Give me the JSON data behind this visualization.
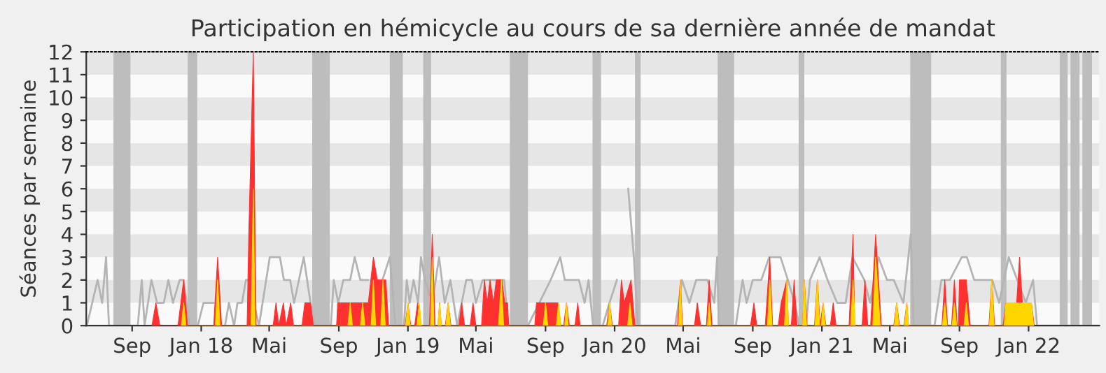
{
  "chart_data": {
    "type": "area",
    "title": "Participation en hémicycle au cours de sa dernière année de mandat",
    "ylabel": "Séances par semaine",
    "xlim": [
      "2017-06-12",
      "2022-05-06"
    ],
    "ylim": [
      0,
      12
    ],
    "yticks": [
      0,
      1,
      2,
      3,
      4,
      5,
      6,
      7,
      8,
      9,
      10,
      11,
      12
    ],
    "xticks": [
      {
        "value": "2017-09-01",
        "label": "Sep"
      },
      {
        "value": "2018-01-01",
        "label": "Jan 18"
      },
      {
        "value": "2018-05-01",
        "label": "Mai"
      },
      {
        "value": "2018-09-01",
        "label": "Sep"
      },
      {
        "value": "2019-01-01",
        "label": "Jan 19"
      },
      {
        "value": "2019-05-01",
        "label": "Mai"
      },
      {
        "value": "2019-09-01",
        "label": "Sep"
      },
      {
        "value": "2020-01-01",
        "label": "Jan 20"
      },
      {
        "value": "2020-05-01",
        "label": "Mai"
      },
      {
        "value": "2020-09-01",
        "label": "Sep"
      },
      {
        "value": "2021-01-01",
        "label": "Jan 21"
      },
      {
        "value": "2021-05-01",
        "label": "Mai"
      },
      {
        "value": "2021-09-01",
        "label": "Sep"
      },
      {
        "value": "2022-01-01",
        "label": "Jan 22"
      }
    ],
    "legend": false,
    "marker": "none",
    "line_style": "solid",
    "bands": [
      {
        "axis": "y",
        "from": 1,
        "to": 2,
        "color": "#e6e6e6"
      },
      {
        "axis": "y",
        "from": 3,
        "to": 4,
        "color": "#e6e6e6"
      },
      {
        "axis": "y",
        "from": 5,
        "to": 6,
        "color": "#e6e6e6"
      },
      {
        "axis": "y",
        "from": 7,
        "to": 8,
        "color": "#e6e6e6"
      },
      {
        "axis": "y",
        "from": 9,
        "to": 10,
        "color": "#e6e6e6"
      },
      {
        "axis": "y",
        "from": 11,
        "to": 12,
        "color": "#e6e6e6"
      },
      {
        "axis": "x",
        "from": "2017-07-30",
        "to": "2017-08-29",
        "color": "#bdbdbd"
      },
      {
        "axis": "x",
        "from": "2017-12-08",
        "to": "2017-12-25",
        "color": "#bdbdbd"
      },
      {
        "axis": "x",
        "from": "2018-07-16",
        "to": "2018-08-16",
        "color": "#bdbdbd"
      },
      {
        "axis": "x",
        "from": "2018-11-30",
        "to": "2018-12-23",
        "color": "#bdbdbd"
      },
      {
        "axis": "x",
        "from": "2019-01-28",
        "to": "2019-02-11",
        "color": "#bdbdbd"
      },
      {
        "axis": "x",
        "from": "2019-06-30",
        "to": "2019-08-01",
        "color": "#bdbdbd"
      },
      {
        "axis": "x",
        "from": "2019-11-23",
        "to": "2019-12-08",
        "color": "#bdbdbd"
      },
      {
        "axis": "x",
        "from": "2020-02-06",
        "to": "2020-02-16",
        "color": "#bdbdbd"
      },
      {
        "axis": "x",
        "from": "2020-07-01",
        "to": "2020-07-30",
        "color": "#bdbdbd"
      },
      {
        "axis": "x",
        "from": "2020-11-21",
        "to": "2020-12-01",
        "color": "#bdbdbd"
      },
      {
        "axis": "x",
        "from": "2021-06-06",
        "to": "2021-07-13",
        "color": "#bdbdbd"
      },
      {
        "axis": "x",
        "from": "2021-11-13",
        "to": "2021-11-23",
        "color": "#bdbdbd"
      },
      {
        "axis": "x",
        "from": "2022-02-25",
        "to": "2022-03-11",
        "color": "#bdbdbd"
      },
      {
        "axis": "x",
        "from": "2022-03-16",
        "to": "2022-04-01",
        "color": "#bdbdbd"
      },
      {
        "axis": "x",
        "from": "2022-04-06",
        "to": "2022-04-23",
        "color": "#bdbdbd"
      }
    ],
    "series": [
      {
        "type": "line",
        "color": "#b4b4b4",
        "x": [
          "2017-06-13",
          "2017-07-02",
          "2017-07-10",
          "2017-07-17",
          "2017-07-22",
          "2017-09-11",
          "2017-09-18",
          "2017-09-23",
          "2017-10-05",
          "2017-10-15",
          "2017-10-27",
          "2017-11-04",
          "2017-11-12",
          "2017-11-24",
          "2017-12-01",
          "2017-12-11",
          "2017-12-26",
          "2018-01-05",
          "2018-01-23",
          "2018-01-30",
          "2018-02-12",
          "2018-02-19",
          "2018-02-28",
          "2018-03-06",
          "2018-03-14",
          "2018-03-21",
          "2018-03-26",
          "2018-04-13",
          "2018-05-02",
          "2018-05-20",
          "2018-05-27",
          "2018-06-07",
          "2018-06-14",
          "2018-07-01",
          "2018-07-13",
          "2018-07-20",
          "2018-08-18",
          "2018-08-23",
          "2018-08-31",
          "2018-09-09",
          "2018-09-21",
          "2018-09-29",
          "2018-10-09",
          "2018-10-23",
          "2018-11-05",
          "2018-11-17",
          "2018-11-30",
          "2018-12-10",
          "2018-12-25",
          "2018-12-30",
          "2019-01-04",
          "2019-01-11",
          "2019-01-19",
          "2019-01-24",
          "2019-01-31",
          "2019-02-13",
          "2019-02-25",
          "2019-03-07",
          "2019-03-17",
          "2019-03-29",
          "2019-04-14",
          "2019-04-24",
          "2019-05-01",
          "2019-05-13",
          "2019-06-03",
          "2019-06-20",
          "2019-06-27",
          "2019-08-01",
          "2019-08-21",
          "2019-09-10",
          "2019-09-27",
          "2019-10-05",
          "2019-10-30",
          "2019-11-09",
          "2019-11-16",
          "2019-11-24",
          "2019-12-11",
          "2019-12-23",
          "2020-01-05",
          "2020-01-15",
          "2020-01-25",
          "2020-02-04",
          "2020-02-11",
          "2020-04-17",
          "2020-04-29",
          "2020-05-12",
          "2020-05-24",
          "2020-06-13",
          "2020-06-25",
          "2020-06-30",
          "2020-07-03",
          "2020-08-02",
          "2020-08-14",
          "2020-08-21",
          "2020-09-01",
          "2020-09-16",
          "2020-09-30",
          "2020-10-10",
          "2020-10-20",
          "2020-11-02",
          "2020-11-14",
          "2020-11-22",
          "2020-12-04",
          "2020-12-11",
          "2020-12-28",
          "2021-01-11",
          "2021-01-28",
          "2021-02-12",
          "2021-02-24",
          "2021-03-17",
          "2021-03-27",
          "2021-04-11",
          "2021-04-26",
          "2021-05-08",
          "2021-05-25",
          "2021-06-07",
          "2021-06-12",
          "2021-07-19",
          "2021-07-31",
          "2021-08-15",
          "2021-09-05",
          "2021-09-14",
          "2021-09-27",
          "2021-10-14",
          "2021-10-29",
          "2021-11-10",
          "2021-11-27",
          "2021-12-12",
          "2021-12-27",
          "2022-01-09",
          "2022-01-16",
          "2022-05-06"
        ],
        "values": [
          0,
          2,
          1,
          3,
          0,
          0,
          2,
          0,
          2,
          1,
          1,
          2,
          1,
          2,
          2,
          0,
          0,
          1,
          1,
          null,
          0,
          1,
          0,
          1,
          1,
          2,
          2,
          0,
          3,
          3,
          2,
          2,
          1,
          3,
          1,
          0,
          0,
          2,
          1,
          2,
          2,
          3,
          2,
          2,
          null,
          2,
          3,
          0,
          0,
          2,
          1,
          2,
          1,
          3,
          2,
          1,
          3,
          1,
          2,
          0,
          2,
          2,
          1,
          2,
          2,
          2,
          0,
          0,
          1,
          2,
          3,
          2,
          2,
          1,
          2,
          0,
          0,
          1,
          2,
          null,
          6,
          3,
          0,
          0,
          2,
          1,
          2,
          2,
          1,
          3,
          0,
          0,
          2,
          1,
          2,
          2,
          3,
          3,
          3,
          2,
          1,
          0,
          0,
          2,
          3,
          2,
          1,
          1,
          3,
          2,
          1,
          3,
          2,
          2,
          1,
          4,
          0,
          0,
          2,
          2,
          3,
          3,
          2,
          2,
          2,
          1,
          3,
          2,
          1,
          2,
          0,
          0
        ]
      },
      {
        "color": "#ff3030",
        "x": [
          "2017-10-06",
          "2017-10-13",
          "2017-10-20",
          "2017-11-21",
          "2017-12-01",
          "2017-12-08",
          "2018-01-23",
          "2018-01-30",
          "2018-02-06",
          "2018-03-23",
          "2018-03-26",
          "2018-04-01",
          "2018-04-03",
          "2018-04-06",
          "2018-04-08",
          "2018-05-08",
          "2018-05-13",
          "2018-05-18",
          "2018-05-26",
          "2018-05-31",
          "2018-06-08",
          "2018-06-13",
          "2018-06-28",
          "2018-07-03",
          "2018-07-13",
          "2018-07-18",
          "2018-08-28",
          "2018-08-30",
          "2018-10-23",
          "2018-11-01",
          "2018-11-08",
          "2018-11-23",
          "2018-11-28",
          "2018-12-27",
          "2019-01-01",
          "2019-01-06",
          "2019-01-13",
          "2019-01-18",
          "2019-01-23",
          "2019-02-08",
          "2019-02-13",
          "2019-02-18",
          "2019-02-23",
          "2019-02-26",
          "2019-03-01",
          "2019-03-08",
          "2019-03-13",
          "2019-03-18",
          "2019-04-01",
          "2019-04-06",
          "2019-04-11",
          "2019-04-21",
          "2019-04-26",
          "2019-05-01",
          "2019-05-11",
          "2019-05-16",
          "2019-05-21",
          "2019-05-26",
          "2019-06-01",
          "2019-06-06",
          "2019-06-16",
          "2019-06-21",
          "2019-06-26",
          "2019-06-28",
          "2019-08-13",
          "2019-08-16",
          "2019-09-23",
          "2019-09-28",
          "2019-10-03",
          "2019-10-08",
          "2019-10-13",
          "2019-10-23",
          "2019-10-28",
          "2019-11-01",
          "2019-12-18",
          "2019-12-23",
          "2019-12-28",
          "2020-01-08",
          "2020-01-13",
          "2020-01-18",
          "2020-01-30",
          "2020-02-06",
          "2020-04-21",
          "2020-04-26",
          "2020-04-30",
          "2020-05-21",
          "2020-05-26",
          "2020-06-01",
          "2020-06-11",
          "2020-06-16",
          "2020-06-21",
          "2020-08-28",
          "2020-09-03",
          "2020-09-08",
          "2020-09-23",
          "2020-10-01",
          "2020-10-06",
          "2020-10-16",
          "2020-10-21",
          "2020-10-31",
          "2020-11-03",
          "2020-11-08",
          "2020-11-13",
          "2020-11-18",
          "2020-11-28",
          "2020-12-01",
          "2020-12-06",
          "2020-12-19",
          "2020-12-24",
          "2020-12-29",
          "2021-01-03",
          "2021-01-08",
          "2021-01-16",
          "2021-01-21",
          "2021-01-26",
          "2021-02-18",
          "2021-02-25",
          "2021-02-28",
          "2021-03-13",
          "2021-03-18",
          "2021-03-23",
          "2021-03-28",
          "2021-04-06",
          "2021-04-16",
          "2021-05-08",
          "2021-05-13",
          "2021-05-18",
          "2021-05-26",
          "2021-05-31",
          "2021-06-03",
          "2021-08-01",
          "2021-08-06",
          "2021-08-11",
          "2021-08-18",
          "2021-08-23",
          "2021-08-28",
          "2021-08-30",
          "2021-09-01",
          "2021-09-13",
          "2021-09-20",
          "2021-10-23",
          "2021-10-28",
          "2021-11-02",
          "2021-11-17",
          "2021-11-22",
          "2021-12-11",
          "2021-12-16",
          "2021-12-21",
          "2022-01-06",
          "2022-01-11"
        ],
        "values": [
          0,
          1,
          0,
          0,
          2,
          0,
          0,
          3,
          0,
          0,
          4,
          10,
          12,
          4,
          0,
          0,
          1,
          0,
          1,
          0,
          1,
          0,
          0,
          1,
          1,
          0,
          0,
          1,
          1,
          3,
          2,
          2,
          0,
          0,
          1,
          0,
          0,
          1,
          0,
          0,
          4,
          0,
          0,
          1,
          0,
          0,
          1,
          0,
          0,
          1,
          0,
          0,
          1,
          0,
          0,
          2,
          1,
          2,
          1,
          2,
          2,
          1,
          1,
          0,
          0,
          1,
          1,
          0,
          0,
          1,
          0,
          0,
          1,
          0,
          0,
          1,
          0,
          0,
          2,
          1,
          2,
          0,
          0,
          2,
          0,
          0,
          1,
          0,
          0,
          2,
          0,
          0,
          1,
          0,
          0,
          3,
          0,
          0,
          1,
          2,
          0,
          0,
          2,
          0,
          0,
          2,
          0,
          0,
          2,
          0,
          1,
          0,
          0,
          1,
          0,
          0,
          4,
          0,
          0,
          2,
          0,
          0,
          4,
          0,
          0,
          1,
          0,
          0,
          1,
          0,
          0,
          2,
          0,
          0,
          2,
          0,
          0,
          2,
          2,
          0,
          0,
          2,
          0,
          0,
          1,
          1,
          3,
          1,
          1,
          0
        ]
      },
      {
        "color": "#ffd700",
        "x": [
          "2017-11-27",
          "2017-12-01",
          "2017-12-05",
          "2018-01-26",
          "2018-01-30",
          "2018-02-03",
          "2018-03-30",
          "2018-04-03",
          "2018-04-06",
          "2018-09-17",
          "2018-09-21",
          "2018-09-25",
          "2018-10-09",
          "2018-10-13",
          "2018-10-17",
          "2018-10-28",
          "2018-11-01",
          "2018-11-05",
          "2018-11-14",
          "2018-11-18",
          "2018-11-22",
          "2018-12-28",
          "2019-01-01",
          "2019-01-05",
          "2019-01-17",
          "2019-01-21",
          "2019-01-25",
          "2019-02-10",
          "2019-02-13",
          "2019-02-16",
          "2019-02-23",
          "2019-02-26",
          "2019-03-01",
          "2019-03-09",
          "2019-03-13",
          "2019-03-17",
          "2019-06-10",
          "2019-06-15",
          "2019-06-19",
          "2019-08-28",
          "2019-09-01",
          "2019-09-05",
          "2019-09-20",
          "2019-09-24",
          "2019-09-28",
          "2019-10-05",
          "2019-10-08",
          "2019-10-11",
          "2019-12-20",
          "2019-12-23",
          "2019-12-27",
          "2020-01-24",
          "2020-01-28",
          "2020-02-01",
          "2020-04-23",
          "2020-04-26",
          "2020-04-29",
          "2020-06-13",
          "2020-06-16",
          "2020-06-19",
          "2020-09-27",
          "2020-10-01",
          "2020-10-05",
          "2020-10-27",
          "2020-10-31",
          "2020-11-03",
          "2020-11-28",
          "2020-12-01",
          "2020-12-05",
          "2020-12-20",
          "2020-12-24",
          "2020-12-28",
          "2020-12-31",
          "2021-01-03",
          "2021-01-07",
          "2021-02-21",
          "2021-02-25",
          "2021-03-01",
          "2021-04-01",
          "2021-04-06",
          "2021-04-14",
          "2021-05-09",
          "2021-05-13",
          "2021-05-17",
          "2021-05-27",
          "2021-05-31",
          "2021-06-03",
          "2021-08-02",
          "2021-08-06",
          "2021-08-10",
          "2021-08-19",
          "2021-08-23",
          "2021-08-27",
          "2021-09-09",
          "2021-09-13",
          "2021-09-17",
          "2021-10-24",
          "2021-10-28",
          "2021-11-01",
          "2021-11-19",
          "2021-11-22",
          "2022-01-06",
          "2022-01-10"
        ],
        "values": [
          0,
          1,
          0,
          0,
          2,
          0,
          0,
          6,
          0,
          0,
          1,
          0,
          0,
          1,
          0,
          0,
          2,
          0,
          0,
          2,
          0,
          0,
          1,
          0,
          0,
          1,
          0,
          0,
          3,
          0,
          0,
          1,
          0,
          0,
          1,
          0,
          0,
          2,
          0,
          0,
          1,
          0,
          0,
          1,
          0,
          0,
          1,
          0,
          0,
          1,
          0,
          0,
          1,
          0,
          0,
          2,
          0,
          0,
          1,
          0,
          0,
          2,
          0,
          0,
          2,
          0,
          0,
          2,
          0,
          0,
          2,
          0,
          0,
          1,
          0,
          0,
          2,
          0,
          0,
          3,
          0,
          0,
          1,
          0,
          0,
          1,
          0,
          0,
          1,
          0,
          0,
          1,
          0,
          0,
          1,
          0,
          0,
          2,
          0,
          0,
          1,
          1,
          0
        ]
      }
    ]
  }
}
